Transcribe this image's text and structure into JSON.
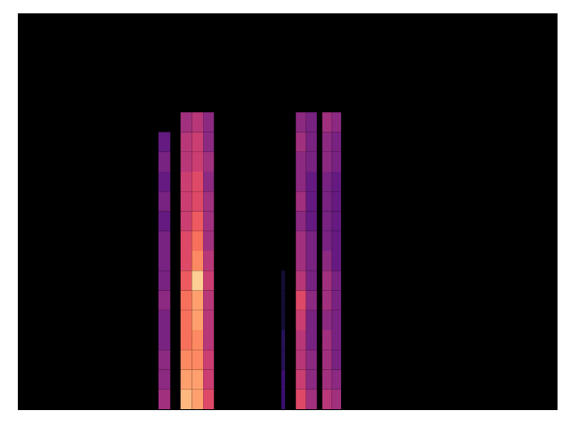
{
  "chart_data": {
    "type": "heatmap",
    "xlim": [
      0,
      100
    ],
    "ylim": [
      0,
      80
    ],
    "zlim": [
      0,
      1
    ],
    "color": "magma",
    "tick_labels": false,
    "ybins": [
      0,
      4,
      8,
      12,
      16,
      20,
      24,
      28,
      32,
      36,
      40,
      44,
      48,
      52,
      56,
      60
    ],
    "cells": [
      {
        "t0": 26.1,
        "t1": 28.3,
        "values": [
          0.45,
          0.4,
          0.4,
          0.35,
          0.35,
          0.4,
          0.35,
          0.35,
          0.35,
          0.3,
          0.35,
          0.3,
          0.35,
          0.3
        ]
      },
      {
        "t0": 30.2,
        "t1": 32.3,
        "values": [
          0.85,
          0.8,
          0.75,
          0.7,
          0.7,
          0.7,
          0.65,
          0.6,
          0.6,
          0.55,
          0.55,
          0.55,
          0.5,
          0.5,
          0.45
        ]
      },
      {
        "t0": 32.3,
        "t1": 34.4,
        "values": [
          0.8,
          0.8,
          0.75,
          0.75,
          0.8,
          0.8,
          0.9,
          0.75,
          0.7,
          0.65,
          0.6,
          0.6,
          0.55,
          0.55,
          0.5
        ]
      },
      {
        "t0": 34.4,
        "t1": 36.4,
        "values": [
          0.6,
          0.55,
          0.55,
          0.5,
          0.5,
          0.5,
          0.55,
          0.5,
          0.45,
          0.45,
          0.45,
          0.4,
          0.45,
          0.4,
          0.4
        ]
      },
      {
        "t0": 48.9,
        "t1": 49.6,
        "values": [
          0.2,
          0.2,
          0.15,
          0.15,
          0.1,
          0.1,
          0.1
        ]
      },
      {
        "t0": 51.6,
        "t1": 53.5,
        "values": [
          0.6,
          0.55,
          0.5,
          0.5,
          0.55,
          0.6,
          0.5,
          0.45,
          0.45,
          0.4,
          0.45,
          0.4,
          0.4,
          0.45,
          0.4
        ]
      },
      {
        "t0": 53.5,
        "t1": 55.5,
        "values": [
          0.45,
          0.4,
          0.4,
          0.35,
          0.35,
          0.4,
          0.35,
          0.35,
          0.35,
          0.3,
          0.3,
          0.3,
          0.35,
          0.35,
          0.35
        ]
      },
      {
        "t0": 56.5,
        "t1": 58.3,
        "values": [
          0.5,
          0.45,
          0.45,
          0.45,
          0.4,
          0.45,
          0.45,
          0.4,
          0.35,
          0.35,
          0.35,
          0.35,
          0.4,
          0.4,
          0.45
        ]
      },
      {
        "t0": 58.3,
        "t1": 60.0,
        "values": [
          0.45,
          0.4,
          0.35,
          0.35,
          0.35,
          0.35,
          0.35,
          0.3,
          0.3,
          0.3,
          0.3,
          0.3,
          0.35,
          0.35,
          0.4
        ]
      }
    ]
  }
}
